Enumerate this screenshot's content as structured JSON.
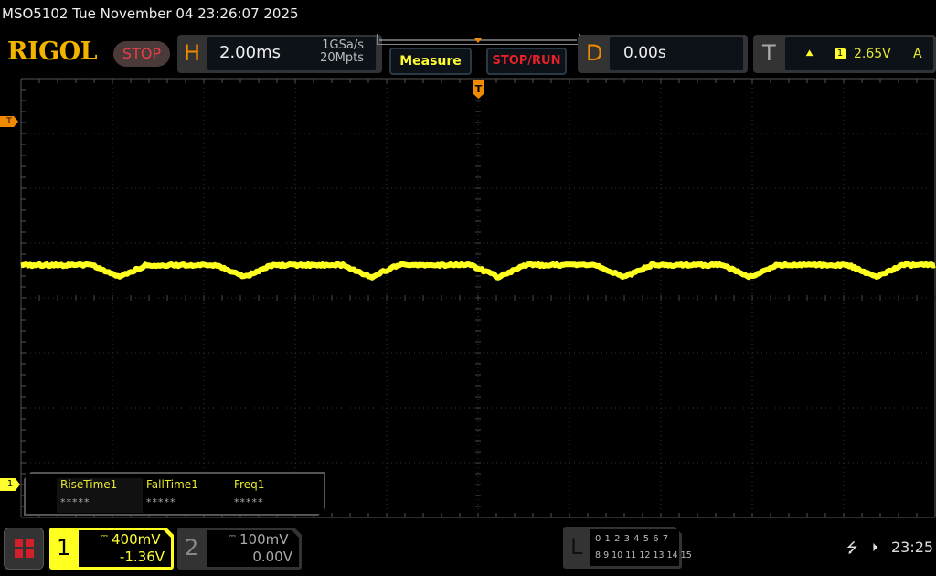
{
  "status_bar": {
    "title": "MSO5102  Tue November 04 23:26:07 2025"
  },
  "header": {
    "logo": "RIGOL",
    "run_state": "STOP",
    "horizontal": {
      "letter": "H",
      "timebase": "2.00ms",
      "sample_rate": "1GSa/s",
      "memory_depth": "20Mpts"
    },
    "measure_button": "Measure",
    "stop_run_button": "STOP/RUN",
    "delay": {
      "letter": "D",
      "value": "0.00s"
    },
    "trigger": {
      "letter": "T",
      "edge_icon": "rising-edge-icon",
      "source": "1",
      "level": "2.65V",
      "mode": "A"
    }
  },
  "screen": {
    "trigger_position_marker": "T",
    "trigger_level_marker": "T",
    "channel1_marker": "1",
    "trace_color": "#ffff20",
    "divisions": {
      "horizontal": 10,
      "vertical": 8
    }
  },
  "measurements": [
    {
      "name": "RiseTime1",
      "value": "*****"
    },
    {
      "name": "FallTime1",
      "value": "*****"
    },
    {
      "name": "Freq1",
      "value": "*****"
    }
  ],
  "footer": {
    "channel1": {
      "number": "1",
      "scale": "400mV",
      "offset": "-1.36V",
      "color": "#ffff20"
    },
    "channel2": {
      "number": "2",
      "scale": "100mV",
      "offset": "0.00V"
    },
    "logic": {
      "letter": "L",
      "row1": "0 1 2 3  4 5 6 7",
      "row2": "8 9 10 11 12 13 14 15"
    },
    "clock": "23:25",
    "icons": [
      "menu-icon",
      "usb-icon",
      "speaker-muted-icon"
    ]
  }
}
